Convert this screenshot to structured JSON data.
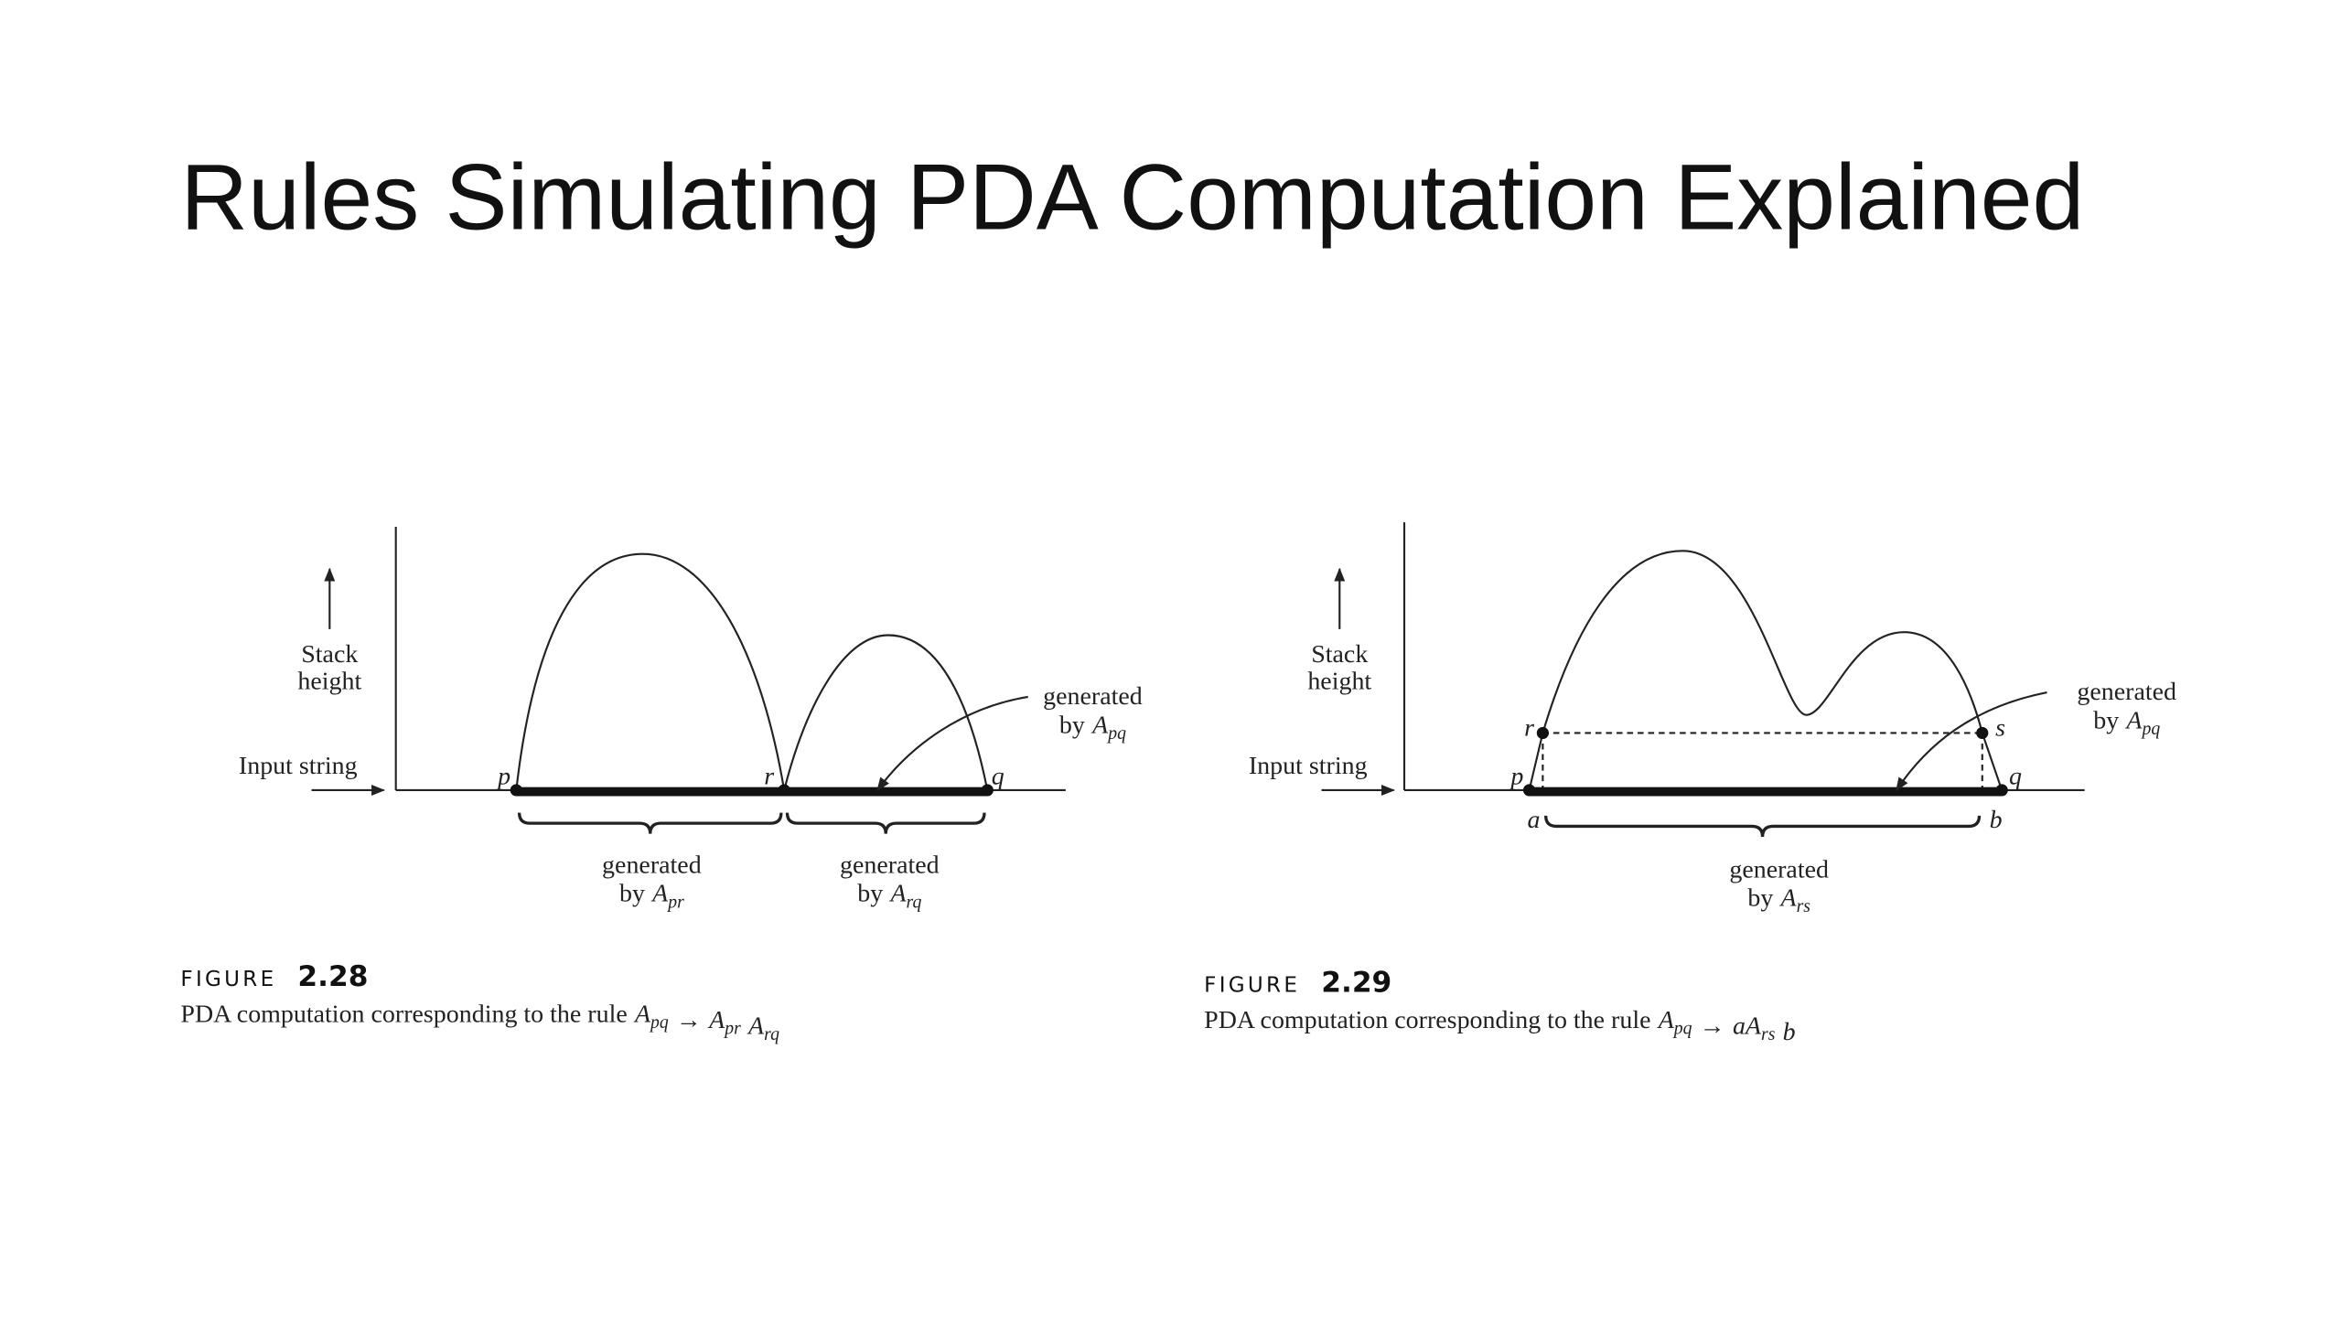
{
  "title": "Rules Simulating PDA Computation Explained",
  "figures": [
    {
      "label": "FIGURE",
      "number": "2.28",
      "caption": {
        "text": "PDA computation corresponding to the rule",
        "formula": [
          {
            "text": "A",
            "sub": "pq"
          },
          {
            "text": "→"
          },
          {
            "text": "A",
            "sub": "pr"
          },
          {
            "text": "A",
            "sub": "rq"
          }
        ]
      },
      "y_axis_label": [
        "Stack",
        "height"
      ],
      "x_axis_label": "Input string",
      "points": [
        "p",
        "r",
        "q"
      ],
      "regions": [
        {
          "line1": "generated",
          "by": "by",
          "formula": [
            {
              "text": "A",
              "sub": "pr"
            }
          ]
        },
        {
          "line1": "generated",
          "by": "by",
          "formula": [
            {
              "text": "A",
              "sub": "rq"
            }
          ]
        }
      ],
      "pointer": {
        "line1": "generated",
        "by": "by",
        "formula": [
          {
            "text": "A",
            "sub": "pq"
          }
        ]
      }
    },
    {
      "label": "FIGURE",
      "number": "2.29",
      "caption": {
        "text": "PDA computation corresponding to the rule",
        "formula": [
          {
            "text": "A",
            "sub": "pq"
          },
          {
            "text": "→"
          },
          {
            "text": "aA",
            "sub": "rs"
          },
          {
            "text": "b"
          }
        ]
      },
      "y_axis_label": [
        "Stack",
        "height"
      ],
      "x_axis_label": "Input string",
      "points": [
        "p",
        "q",
        "r",
        "s",
        "a",
        "b"
      ],
      "regions": [
        {
          "line1": "generated",
          "by": "by",
          "formula": [
            {
              "text": "A",
              "sub": "rs"
            }
          ]
        }
      ],
      "pointer": {
        "line1": "generated",
        "by": "by",
        "formula": [
          {
            "text": "A",
            "sub": "pq"
          }
        ]
      }
    }
  ]
}
